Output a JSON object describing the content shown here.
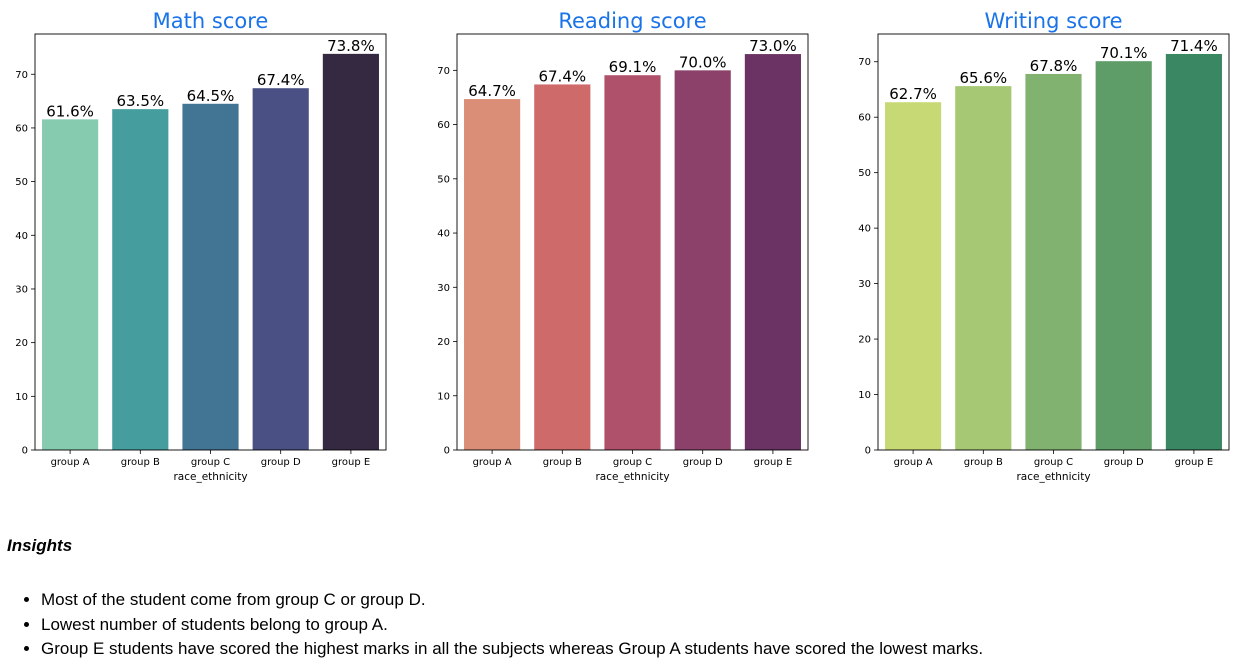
{
  "chart_data": [
    {
      "type": "bar",
      "title": "Math score",
      "xlabel": "race_ethnicity",
      "ylabel": "",
      "categories": [
        "group A",
        "group B",
        "group C",
        "group D",
        "group E"
      ],
      "values": [
        61.6,
        63.5,
        64.5,
        67.4,
        73.8
      ],
      "value_labels": [
        "61.6%",
        "63.5%",
        "64.5%",
        "67.4%",
        "73.8%"
      ],
      "colors": [
        "#86cbb0",
        "#469d9d",
        "#427594",
        "#4a5083",
        "#352942"
      ],
      "yticks": [
        0,
        10,
        20,
        30,
        40,
        50,
        60,
        70
      ],
      "ylim": [
        0,
        77.5
      ]
    },
    {
      "type": "bar",
      "title": "Reading score",
      "xlabel": "race_ethnicity",
      "ylabel": "",
      "categories": [
        "group A",
        "group B",
        "group C",
        "group D",
        "group E"
      ],
      "values": [
        64.7,
        67.4,
        69.1,
        70.0,
        73.0
      ],
      "value_labels": [
        "64.7%",
        "67.4%",
        "69.1%",
        "70.0%",
        "73.0%"
      ],
      "colors": [
        "#da8e78",
        "#cf6a6a",
        "#b0516b",
        "#8c416a",
        "#6a3363"
      ],
      "yticks": [
        0,
        10,
        20,
        30,
        40,
        50,
        60,
        70
      ],
      "ylim": [
        0,
        76.7
      ]
    },
    {
      "type": "bar",
      "title": "Writing score",
      "xlabel": "race_ethnicity",
      "ylabel": "",
      "categories": [
        "group A",
        "group B",
        "group C",
        "group D",
        "group E"
      ],
      "values": [
        62.7,
        65.6,
        67.8,
        70.1,
        71.4
      ],
      "value_labels": [
        "62.7%",
        "65.6%",
        "67.8%",
        "70.1%",
        "71.4%"
      ],
      "colors": [
        "#c7d975",
        "#a6c774",
        "#82b270",
        "#5f9d68",
        "#3a8863"
      ],
      "yticks": [
        0,
        10,
        20,
        30,
        40,
        50,
        60,
        70
      ],
      "ylim": [
        0,
        75.0
      ]
    }
  ],
  "insights": {
    "heading": "Insights",
    "items": [
      "Most of the student come from group C or group D.",
      "Lowest number of students belong to group A.",
      "Group E students have scored the highest marks in all the subjects whereas Group A students have scored the lowest marks."
    ]
  }
}
